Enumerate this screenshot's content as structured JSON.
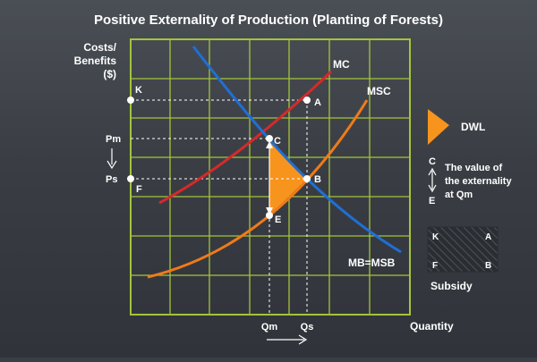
{
  "title": "Positive Externality of Production (Planting of Forests)",
  "axes": {
    "y_label_line1": "Costs/",
    "y_label_line2": "Benefits",
    "y_label_line3": "($)",
    "x_label": "Quantity"
  },
  "y_ticks": {
    "k": "K",
    "pm": "Pm",
    "ps": "Ps",
    "f": "F"
  },
  "x_ticks": {
    "qm": "Qm",
    "qs": "Qs"
  },
  "curves": {
    "mc": "MC",
    "msc": "MSC",
    "mb": "MB=MSB"
  },
  "points": {
    "a": "A",
    "b": "B",
    "c": "C",
    "e": "E"
  },
  "legend": {
    "dwl": "DWL",
    "externality_from": "C",
    "externality_to": "E",
    "externality_line1": "The value of",
    "externality_line2": "the externality",
    "externality_line3": "at Qm",
    "subsidy_k": "K",
    "subsidy_a": "A",
    "subsidy_f": "F",
    "subsidy_b": "B",
    "subsidy_label": "Subsidy"
  },
  "colors": {
    "mc": "#d42a2a",
    "msc": "#f07a1a",
    "mb": "#1f6fd6",
    "grid": "#a3c43a",
    "dwl": "#f7941d",
    "dashed": "#ffffff"
  }
}
